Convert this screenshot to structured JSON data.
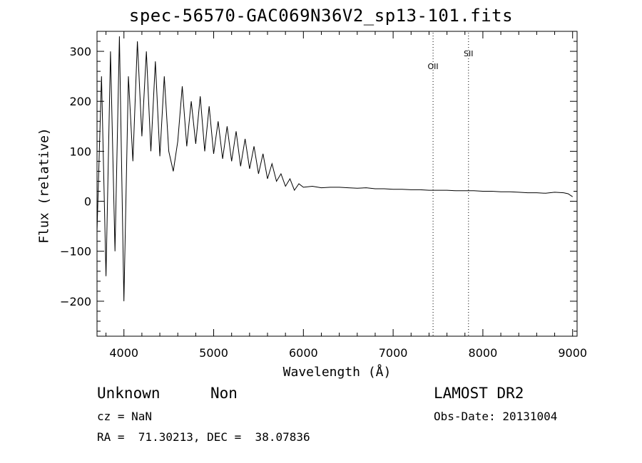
{
  "chart_data": {
    "type": "line",
    "title": "spec-56570-GAC069N36V2_sp13-101.fits",
    "xlabel": "Wavelength (Å)",
    "ylabel": "Flux (relative)",
    "xlim": [
      3700,
      9050
    ],
    "ylim": [
      -270,
      340
    ],
    "xticks": [
      4000,
      5000,
      6000,
      7000,
      8000,
      9000
    ],
    "yticks": [
      -200,
      -100,
      0,
      100,
      200,
      300
    ],
    "xtick_labels": [
      "4000",
      "5000",
      "6000",
      "7000",
      "8000",
      "9000"
    ],
    "ytick_labels": [
      "−200",
      "−100",
      "0",
      "100",
      "200",
      "300"
    ],
    "grid": false,
    "series": [
      {
        "x": [
          3700,
          3750,
          3800,
          3850,
          3900,
          3950,
          4000,
          4050,
          4100,
          4150,
          4200,
          4250,
          4300,
          4350,
          4400,
          4450,
          4500,
          4550,
          4600,
          4650,
          4700,
          4750,
          4800,
          4850,
          4900,
          4950,
          5000,
          5050,
          5100,
          5150,
          5200,
          5250,
          5300,
          5350,
          5400,
          5450,
          5500,
          5550,
          5600,
          5650,
          5700,
          5750,
          5800,
          5850,
          5900,
          5950,
          6000,
          6100,
          6200,
          6300,
          6400,
          6500,
          6600,
          6700,
          6800,
          6900,
          7000,
          7100,
          7200,
          7300,
          7400,
          7500,
          7600,
          7700,
          7800,
          7900,
          8000,
          8100,
          8200,
          8300,
          8400,
          8500,
          8600,
          8700,
          8800,
          8900,
          8950,
          9000
        ],
        "y": [
          -60,
          250,
          -150,
          300,
          -100,
          330,
          -200,
          250,
          80,
          320,
          130,
          300,
          100,
          280,
          90,
          250,
          100,
          60,
          120,
          230,
          110,
          200,
          115,
          210,
          100,
          190,
          95,
          160,
          85,
          150,
          80,
          140,
          70,
          125,
          65,
          110,
          55,
          95,
          45,
          75,
          40,
          55,
          30,
          45,
          22,
          35,
          28,
          30,
          27,
          28,
          28,
          27,
          26,
          27,
          25,
          25,
          24,
          24,
          23,
          23,
          22,
          22,
          22,
          21,
          21,
          21,
          20,
          20,
          19,
          19,
          18,
          17,
          17,
          16,
          18,
          17,
          15,
          9
        ]
      }
    ],
    "lines": [
      {
        "label": "OII",
        "x": 7445
      },
      {
        "label": "SII",
        "x": 7840
      }
    ]
  },
  "info": {
    "class_label": "Unknown",
    "subclass_label": "Non",
    "survey_label": "LAMOST DR2",
    "cz_text": "cz = NaN",
    "obs_date_text": "Obs-Date: 20131004",
    "coords_text": "RA =  71.30213, DEC =  38.07836"
  }
}
